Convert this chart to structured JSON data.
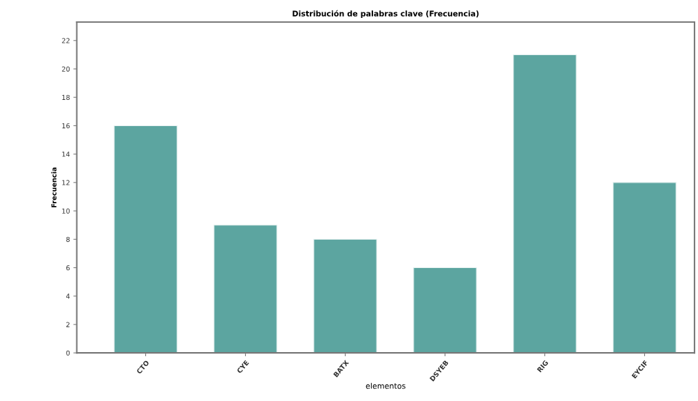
{
  "chart_data": {
    "type": "bar",
    "title": "Distribución de palabras clave (Frecuencia)",
    "xlabel": "elementos",
    "ylabel": "Frecuencia",
    "categories": [
      "CTO",
      "CYE",
      "BATX",
      "DSYEB",
      "RIG",
      "EYCIF"
    ],
    "values": [
      16,
      9,
      8,
      6,
      21,
      12
    ],
    "color": "#5ca5a0",
    "ylim": [
      0,
      23.3
    ],
    "yticks": [
      0,
      2,
      4,
      6,
      8,
      10,
      12,
      14,
      16,
      18,
      20,
      22
    ],
    "grid": false
  }
}
